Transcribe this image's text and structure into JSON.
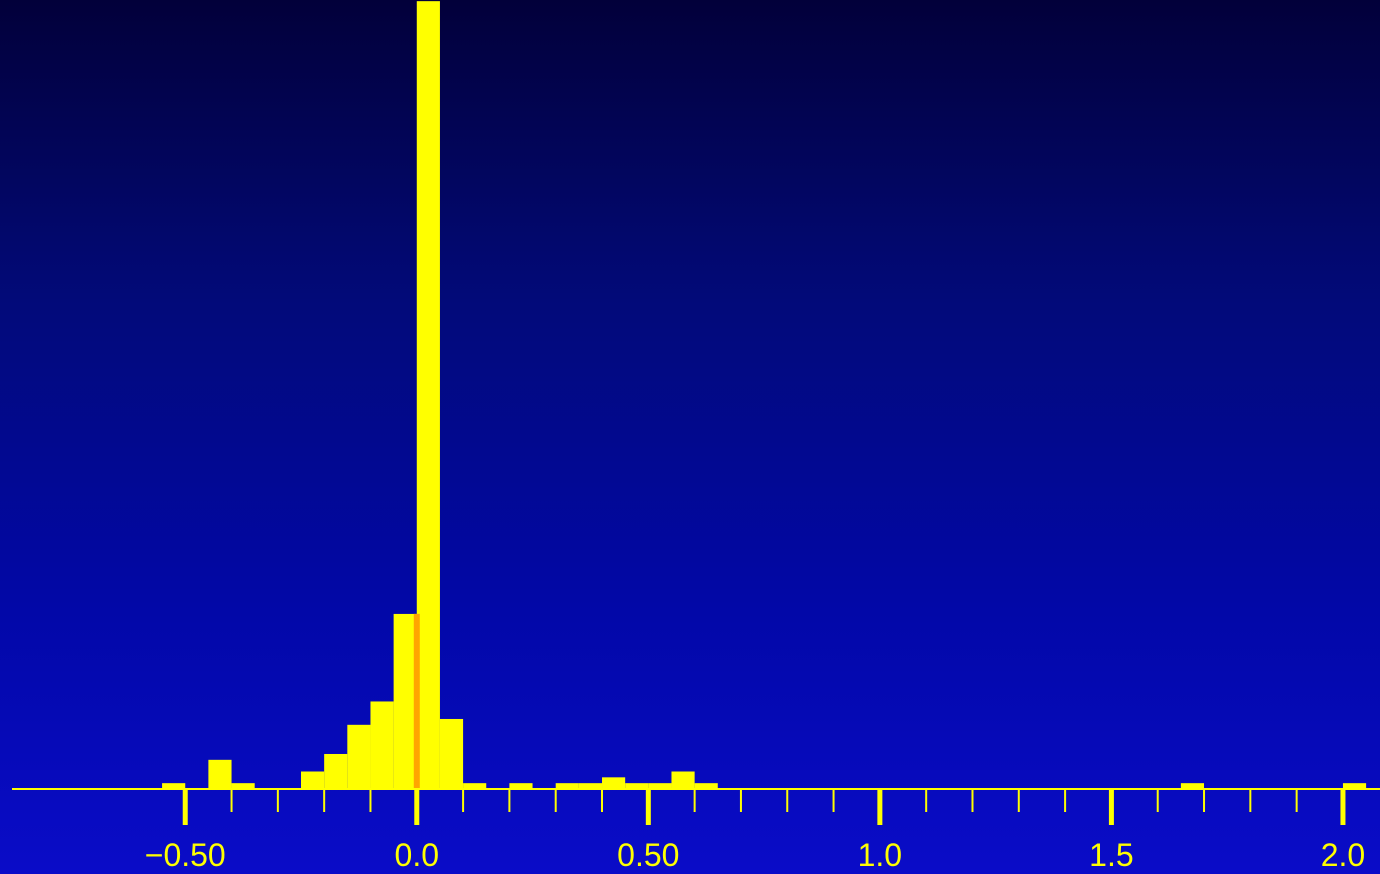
{
  "chart_data": {
    "type": "bar",
    "title": "",
    "xlabel": "",
    "ylabel": "",
    "xlim": [
      -0.9,
      2.08
    ],
    "ylim": [
      0,
      134
    ],
    "bin_width": 0.05,
    "bins": [
      {
        "x0": -0.55,
        "count": 1
      },
      {
        "x0": -0.45,
        "count": 5
      },
      {
        "x0": -0.4,
        "count": 1
      },
      {
        "x0": -0.25,
        "count": 3
      },
      {
        "x0": -0.2,
        "count": 6
      },
      {
        "x0": -0.15,
        "count": 11
      },
      {
        "x0": -0.1,
        "count": 15
      },
      {
        "x0": -0.05,
        "count": 30
      },
      {
        "x0": 0.0,
        "count": 135
      },
      {
        "x0": 0.05,
        "count": 12
      },
      {
        "x0": 0.1,
        "count": 1
      },
      {
        "x0": 0.2,
        "count": 1
      },
      {
        "x0": 0.3,
        "count": 1
      },
      {
        "x0": 0.35,
        "count": 1
      },
      {
        "x0": 0.4,
        "count": 2
      },
      {
        "x0": 0.45,
        "count": 1
      },
      {
        "x0": 0.5,
        "count": 1
      },
      {
        "x0": 0.55,
        "count": 3
      },
      {
        "x0": 0.6,
        "count": 1
      },
      {
        "x0": 1.65,
        "count": 1
      },
      {
        "x0": 2.0,
        "count": 1
      }
    ],
    "reference_line": {
      "x": 0.0,
      "y_top": 30
    },
    "major_ticks": [
      -0.5,
      0.0,
      0.5,
      1.0,
      1.5,
      2.0
    ],
    "tick_labels": [
      "−0.50",
      "0.0",
      "0.50",
      "1.0",
      "1.5",
      "2.0"
    ],
    "minor_ticks": [
      -0.4,
      -0.3,
      -0.2,
      -0.1,
      0.1,
      0.2,
      0.3,
      0.4,
      0.6,
      0.7,
      0.8,
      0.9,
      1.1,
      1.2,
      1.3,
      1.4,
      1.6,
      1.7,
      1.8,
      1.9
    ],
    "grid": false,
    "colors": {
      "bars": "#ffff00",
      "axis": "#ffff00",
      "reference_line": "#ffa500",
      "text": "#ffff00"
    }
  }
}
